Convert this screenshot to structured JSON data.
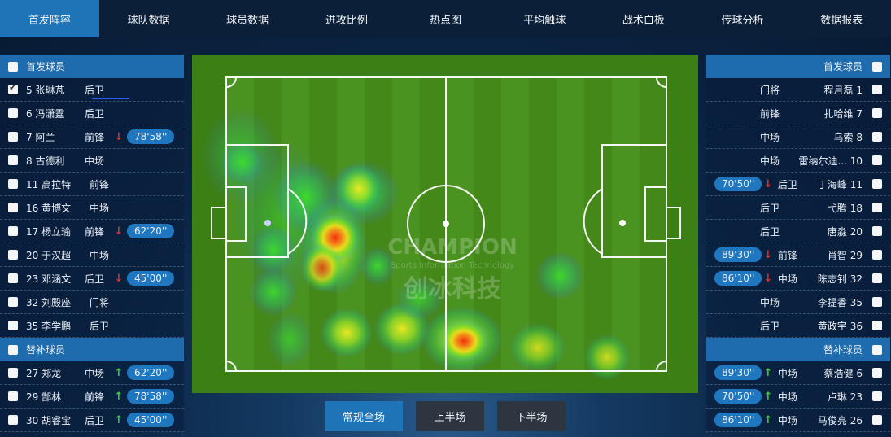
{
  "nav": {
    "tabs": [
      "首发阵容",
      "球队数据",
      "球员数据",
      "进攻比例",
      "热点图",
      "平均触球",
      "战术白板",
      "传球分析",
      "数据报表"
    ],
    "active": 0
  },
  "left": {
    "starters_title": "首发球员",
    "subs_title": "替补球员",
    "starters": [
      {
        "num": "5",
        "name": "张琳芃",
        "pos": "后卫",
        "checked": true
      },
      {
        "num": "6",
        "name": "冯潇霆",
        "pos": "后卫"
      },
      {
        "num": "7",
        "name": "阿兰",
        "pos": "前锋",
        "arrow": "down",
        "time": "78'58''"
      },
      {
        "num": "8",
        "name": "古德利",
        "pos": "中场"
      },
      {
        "num": "11",
        "name": "高拉特",
        "pos": "前锋"
      },
      {
        "num": "16",
        "name": "黄博文",
        "pos": "中场"
      },
      {
        "num": "17",
        "name": "杨立瑜",
        "pos": "前锋",
        "arrow": "down",
        "time": "62'20''"
      },
      {
        "num": "20",
        "name": "于汉超",
        "pos": "中场"
      },
      {
        "num": "23",
        "name": "邓涵文",
        "pos": "后卫",
        "arrow": "down",
        "time": "45'00''"
      },
      {
        "num": "32",
        "name": "刘殿座",
        "pos": "门将"
      },
      {
        "num": "35",
        "name": "李学鹏",
        "pos": "后卫"
      }
    ],
    "subs": [
      {
        "num": "27",
        "name": "郑龙",
        "pos": "中场",
        "arrow": "up",
        "time": "62'20''"
      },
      {
        "num": "29",
        "name": "郜林",
        "pos": "前锋",
        "arrow": "up",
        "time": "78'58''"
      },
      {
        "num": "30",
        "name": "胡睿宝",
        "pos": "后卫",
        "arrow": "up",
        "time": "45'00''"
      }
    ]
  },
  "right": {
    "starters_title": "首发球员",
    "subs_title": "替补球员",
    "starters": [
      {
        "num": "1",
        "name": "程月磊",
        "pos": "门将"
      },
      {
        "num": "7",
        "name": "扎哈维",
        "pos": "前锋"
      },
      {
        "num": "8",
        "name": "乌索",
        "pos": "中场"
      },
      {
        "num": "10",
        "name": "雷纳尔迪...",
        "pos": "中场"
      },
      {
        "num": "11",
        "name": "丁海峰",
        "pos": "后卫",
        "arrow": "down",
        "time": "70'50''"
      },
      {
        "num": "18",
        "name": "弋腾",
        "pos": "后卫"
      },
      {
        "num": "20",
        "name": "唐淼",
        "pos": "后卫"
      },
      {
        "num": "29",
        "name": "肖智",
        "pos": "前锋",
        "arrow": "down",
        "time": "89'30''"
      },
      {
        "num": "32",
        "name": "陈志钊",
        "pos": "中场",
        "arrow": "down",
        "time": "86'10''"
      },
      {
        "num": "35",
        "name": "李提香",
        "pos": "中场"
      },
      {
        "num": "36",
        "name": "黄政宇",
        "pos": "后卫"
      }
    ],
    "subs": [
      {
        "num": "6",
        "name": "蔡浩健",
        "pos": "中场",
        "arrow": "up",
        "time": "89'30''"
      },
      {
        "num": "23",
        "name": "卢琳",
        "pos": "中场",
        "arrow": "up",
        "time": "70'50''"
      },
      {
        "num": "26",
        "name": "马俊亮",
        "pos": "中场",
        "arrow": "up",
        "time": "86'10''"
      }
    ]
  },
  "watermark": {
    "title": "CHAMPION",
    "subtitle": "Sports Information Technology",
    "cn": "创冰科技"
  },
  "buttons": [
    "常规全场",
    "上半场",
    "下半场"
  ],
  "active_button": 0,
  "colors": {
    "nav_bg": "#0b1f38",
    "accent": "#1f73b7",
    "pitch": "#3c7f15",
    "arrow_down": "#e02d2d",
    "arrow_up": "#3ccf3c"
  }
}
